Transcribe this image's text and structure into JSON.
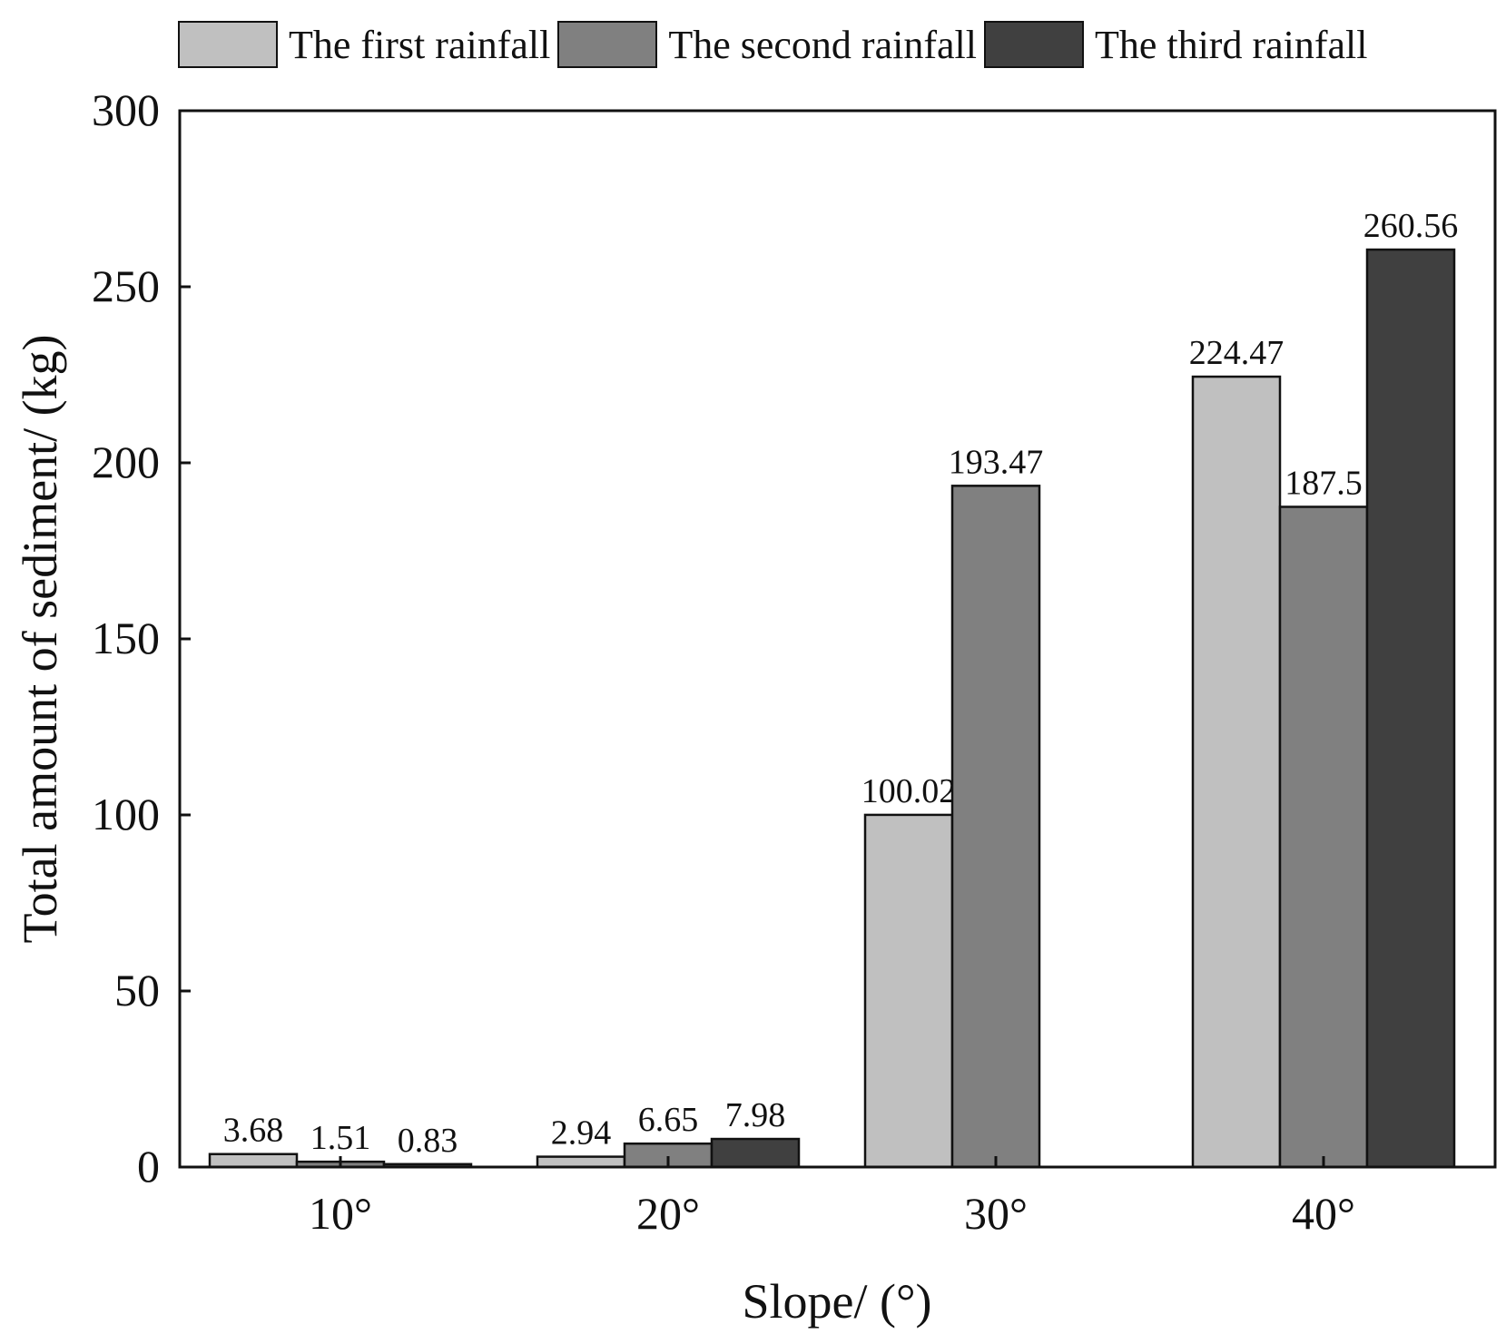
{
  "chart_data": {
    "type": "bar",
    "categories": [
      "10°",
      "20°",
      "30°",
      "40°"
    ],
    "series": [
      {
        "name": "The first rainfall",
        "color": "#c0c0c0",
        "values": [
          3.68,
          2.94,
          100.02,
          224.47
        ]
      },
      {
        "name": "The second rainfall",
        "color": "#808080",
        "values": [
          1.51,
          6.65,
          193.47,
          187.5
        ]
      },
      {
        "name": "The third rainfall",
        "color": "#404040",
        "values": [
          0.83,
          7.98,
          null,
          260.56
        ]
      }
    ],
    "data_labels": [
      [
        "3.68",
        "2.94",
        "100.02",
        "224.47"
      ],
      [
        "1.51",
        "6.65",
        "193.47",
        "187.5"
      ],
      [
        "0.83",
        "7.98",
        null,
        "260.56"
      ]
    ],
    "title": "",
    "xlabel": "Slope/ (°)",
    "ylabel": "Total amount of sediment/ (kg)",
    "ylim": [
      0,
      300
    ],
    "yticks": [
      "0",
      "50",
      "100",
      "150",
      "200",
      "250",
      "300"
    ],
    "grid": false,
    "legend_position": "top"
  }
}
